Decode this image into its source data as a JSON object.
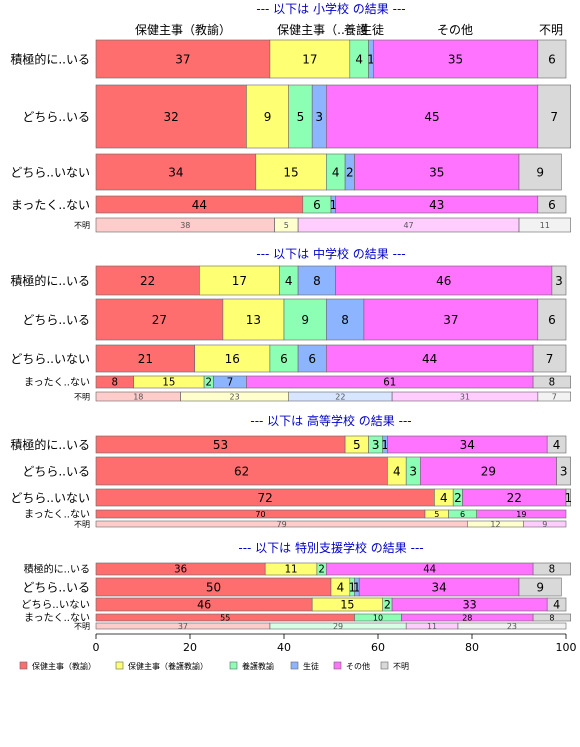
{
  "chart_data": {
    "type": "bar",
    "orientation": "horizontal",
    "stacked": true,
    "normalized": true,
    "xlim": [
      0,
      100
    ],
    "x_ticks": [
      0,
      20,
      40,
      60,
      80,
      100
    ],
    "legend": {
      "position": "bottom",
      "entries": [
        "保健主事（教諭）",
        "保健主事（養護教諭）",
        "養護教諭",
        "生徒",
        "その他",
        "不明"
      ]
    },
    "series_colors": [
      "#ff6e6e",
      "#ffff73",
      "#8cffb4",
      "#8cb4ff",
      "#ff73ff",
      "#d9d9d9"
    ],
    "column_headers": [
      "保健主事（教諭）",
      "保健主事（..",
      "養護",
      "生徒",
      "その他",
      "不明"
    ],
    "panels": [
      {
        "title": "--- 以下は 小学校 の結果 ---",
        "categories": [
          "積極的に..いる",
          "どちら..いる",
          "どちら..いない",
          "まったく..ない",
          "不明"
        ],
        "values": [
          [
            37,
            17,
            4,
            1,
            35,
            6
          ],
          [
            32,
            9,
            5,
            3,
            45,
            7
          ],
          [
            34,
            15,
            4,
            2,
            35,
            9
          ],
          [
            44,
            0,
            6,
            1,
            43,
            6
          ],
          [
            38,
            5,
            0,
            0,
            47,
            11
          ]
        ]
      },
      {
        "title": "--- 以下は 中学校 の結果 ---",
        "categories": [
          "積極的に..いる",
          "どちら..いる",
          "どちら..いない",
          "まったく..ない",
          "不明"
        ],
        "values": [
          [
            22,
            17,
            4,
            8,
            46,
            3
          ],
          [
            27,
            13,
            9,
            8,
            37,
            6
          ],
          [
            21,
            16,
            6,
            6,
            44,
            7
          ],
          [
            8,
            15,
            2,
            7,
            61,
            8
          ],
          [
            18,
            23,
            0,
            22,
            31,
            7
          ]
        ]
      },
      {
        "title": "--- 以下は 高等学校 の結果 ---",
        "categories": [
          "積極的に..いる",
          "どちら..いる",
          "どちら..いない",
          "まったく..ない",
          "不明"
        ],
        "values": [
          [
            53,
            5,
            3,
            1,
            34,
            4
          ],
          [
            62,
            4,
            3,
            0,
            29,
            3
          ],
          [
            72,
            4,
            2,
            0,
            22,
            1
          ],
          [
            70,
            5,
            6,
            0,
            19,
            0
          ],
          [
            79,
            12,
            0,
            0,
            9,
            0
          ]
        ]
      },
      {
        "title": "--- 以下は 特別支援学校 の結果 ---",
        "categories": [
          "積極的に..いる",
          "どちら..いる",
          "どちら..いない",
          "まったく..ない",
          "不明"
        ],
        "values": [
          [
            36,
            11,
            2,
            0,
            44,
            8
          ],
          [
            50,
            4,
            1,
            1,
            34,
            9
          ],
          [
            46,
            15,
            2,
            0,
            33,
            4
          ],
          [
            55,
            0,
            10,
            0,
            28,
            8
          ],
          [
            37,
            0,
            29,
            0,
            11,
            23
          ]
        ]
      }
    ]
  }
}
